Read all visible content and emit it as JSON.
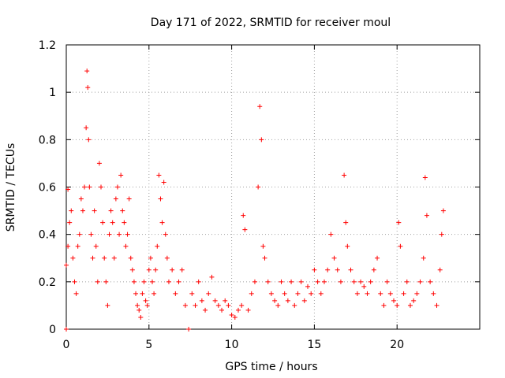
{
  "chart_data": {
    "type": "scatter",
    "title": "Day 171 of 2022, SRMTID for receiver moul",
    "xlabel": "GPS time / hours",
    "ylabel": "SRMTID / TECUs",
    "xlim": [
      0,
      25
    ],
    "ylim": [
      0,
      1.2
    ],
    "xticks": [
      0,
      5,
      10,
      15,
      20
    ],
    "xtick_labels": [
      "0",
      "5",
      "10",
      "15",
      "20"
    ],
    "yticks": [
      0,
      0.2,
      0.4,
      0.6,
      0.8,
      1,
      1.2
    ],
    "ytick_labels": [
      "0",
      "0.2",
      "0.4",
      "0.6",
      "0.8",
      "1",
      "1.2"
    ],
    "grid": true,
    "marker": "+",
    "color": "#ff0000",
    "series": [
      {
        "name": "SRMTID",
        "x": [
          0.0,
          0.0,
          0.1,
          0.1,
          0.2,
          0.3,
          0.4,
          0.5,
          0.6,
          0.7,
          0.8,
          0.9,
          1.0,
          1.1,
          1.2,
          1.25,
          1.3,
          1.35,
          1.4,
          1.5,
          1.6,
          1.7,
          1.8,
          1.9,
          2.0,
          2.1,
          2.2,
          2.3,
          2.4,
          2.5,
          2.6,
          2.7,
          2.8,
          2.9,
          3.0,
          3.1,
          3.2,
          3.3,
          3.4,
          3.5,
          3.6,
          3.7,
          3.8,
          3.9,
          4.0,
          4.1,
          4.2,
          4.3,
          4.4,
          4.5,
          4.6,
          4.7,
          4.8,
          4.9,
          5.0,
          5.1,
          5.2,
          5.3,
          5.4,
          5.5,
          5.6,
          5.7,
          5.8,
          5.9,
          6.0,
          6.1,
          6.2,
          6.4,
          6.6,
          6.8,
          7.0,
          7.2,
          7.4,
          7.6,
          7.8,
          8.0,
          8.2,
          8.4,
          8.6,
          8.8,
          9.0,
          9.2,
          9.4,
          9.6,
          9.8,
          10.0,
          10.2,
          10.4,
          10.6,
          10.7,
          10.8,
          11.0,
          11.2,
          11.4,
          11.6,
          11.7,
          11.8,
          11.9,
          12.0,
          12.2,
          12.4,
          12.6,
          12.8,
          13.0,
          13.2,
          13.4,
          13.6,
          13.8,
          14.0,
          14.2,
          14.4,
          14.6,
          14.8,
          15.0,
          15.2,
          15.4,
          15.6,
          15.8,
          16.0,
          16.2,
          16.4,
          16.6,
          16.8,
          16.9,
          17.0,
          17.2,
          17.4,
          17.6,
          17.8,
          18.0,
          18.2,
          18.4,
          18.6,
          18.8,
          19.0,
          19.2,
          19.4,
          19.6,
          19.8,
          20.0,
          20.1,
          20.2,
          20.4,
          20.6,
          20.8,
          21.0,
          21.2,
          21.4,
          21.6,
          21.7,
          21.8,
          22.0,
          22.2,
          22.4,
          22.6,
          22.7,
          22.8
        ],
        "y": [
          0.0,
          0.27,
          0.59,
          0.35,
          0.45,
          0.5,
          0.3,
          0.2,
          0.15,
          0.35,
          0.4,
          0.55,
          0.5,
          0.6,
          0.85,
          1.09,
          1.02,
          0.8,
          0.6,
          0.4,
          0.3,
          0.5,
          0.35,
          0.2,
          0.7,
          0.6,
          0.45,
          0.3,
          0.2,
          0.1,
          0.4,
          0.5,
          0.45,
          0.3,
          0.55,
          0.6,
          0.4,
          0.65,
          0.5,
          0.45,
          0.35,
          0.4,
          0.55,
          0.3,
          0.25,
          0.2,
          0.15,
          0.1,
          0.08,
          0.05,
          0.15,
          0.2,
          0.12,
          0.1,
          0.25,
          0.3,
          0.2,
          0.15,
          0.25,
          0.35,
          0.65,
          0.55,
          0.45,
          0.62,
          0.4,
          0.3,
          0.2,
          0.25,
          0.15,
          0.2,
          0.25,
          0.1,
          0.0,
          0.15,
          0.1,
          0.2,
          0.12,
          0.08,
          0.15,
          0.22,
          0.12,
          0.1,
          0.08,
          0.12,
          0.1,
          0.06,
          0.05,
          0.08,
          0.1,
          0.48,
          0.42,
          0.08,
          0.15,
          0.2,
          0.6,
          0.94,
          0.8,
          0.35,
          0.3,
          0.2,
          0.15,
          0.12,
          0.1,
          0.2,
          0.15,
          0.12,
          0.2,
          0.1,
          0.15,
          0.2,
          0.12,
          0.18,
          0.15,
          0.25,
          0.2,
          0.15,
          0.2,
          0.25,
          0.4,
          0.3,
          0.25,
          0.2,
          0.65,
          0.45,
          0.35,
          0.25,
          0.2,
          0.15,
          0.2,
          0.18,
          0.15,
          0.2,
          0.25,
          0.3,
          0.15,
          0.1,
          0.2,
          0.15,
          0.12,
          0.1,
          0.45,
          0.35,
          0.15,
          0.2,
          0.1,
          0.12,
          0.15,
          0.2,
          0.3,
          0.64,
          0.48,
          0.2,
          0.15,
          0.1,
          0.25,
          0.4,
          0.5
        ]
      }
    ]
  }
}
